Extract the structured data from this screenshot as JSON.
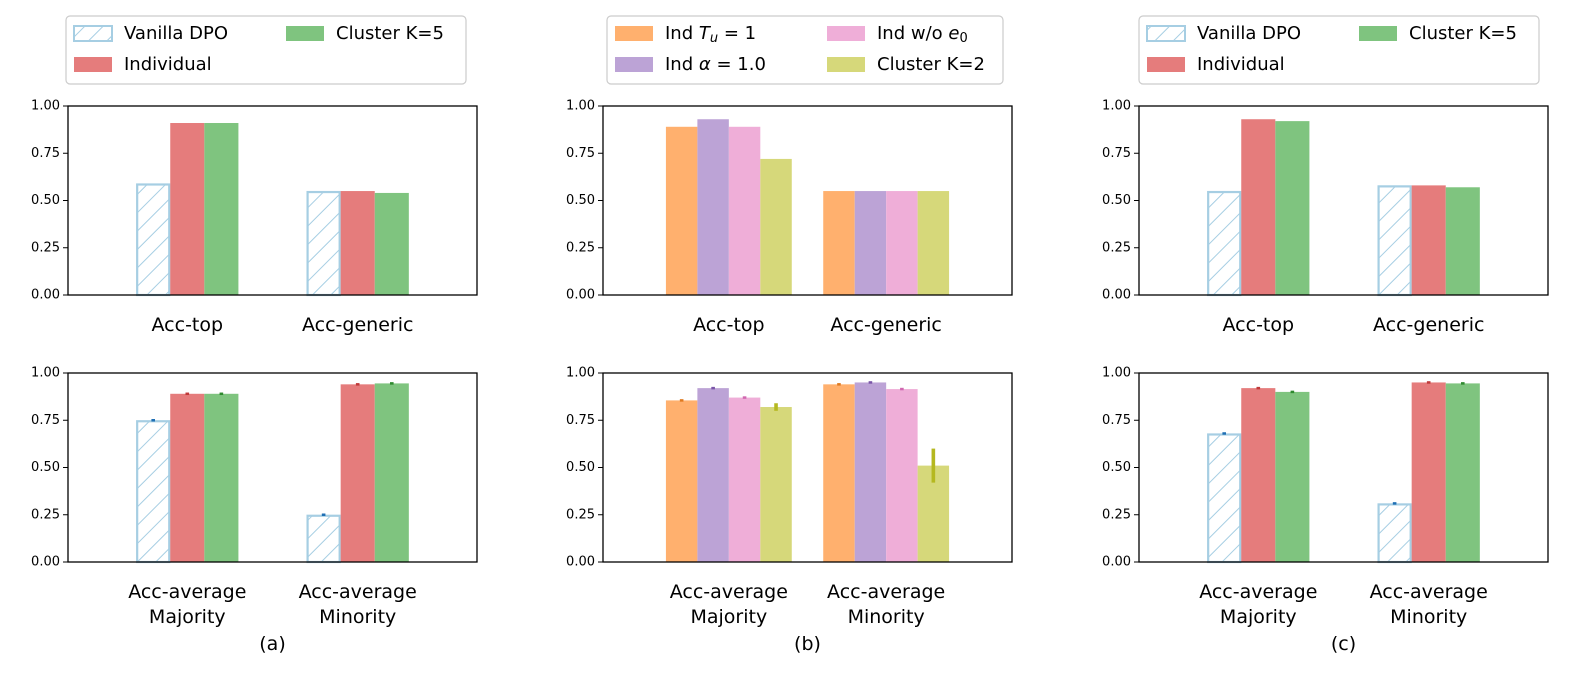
{
  "colors": {
    "vanilla": "#a6cee3",
    "individual": "#e57c7c",
    "cluster5": "#7fc47f",
    "ind_tu": "#ffb06e",
    "ind_alpha": "#bca3d6",
    "ind_wo": "#efaed8",
    "cluster2": "#d6d87a"
  },
  "chart_data": [
    {
      "panel": "a",
      "panel_label": "(a)",
      "type": "bar",
      "ylim": [
        0,
        1
      ],
      "yticks": [
        "0.00",
        "0.25",
        "0.50",
        "0.75",
        "1.00"
      ],
      "legend": [
        {
          "label": "Vanilla DPO",
          "style": "hatch",
          "color": "vanilla"
        },
        {
          "label": "Individual",
          "style": "solid",
          "color": "individual"
        },
        {
          "label": "Cluster K=5",
          "style": "solid",
          "color": "cluster5"
        }
      ],
      "subplots": [
        {
          "categories": [
            "Acc-top",
            "Acc-generic"
          ],
          "series": [
            {
              "name": "Vanilla DPO",
              "values": [
                0.59,
                0.55
              ],
              "errors": [
                0,
                0
              ]
            },
            {
              "name": "Individual",
              "values": [
                0.91,
                0.55
              ],
              "errors": [
                0,
                0
              ]
            },
            {
              "name": "Cluster K=5",
              "values": [
                0.91,
                0.54
              ],
              "errors": [
                0,
                0
              ]
            }
          ]
        },
        {
          "categories": [
            "Acc-average\nMajority",
            "Acc-average\nMinority"
          ],
          "series": [
            {
              "name": "Vanilla DPO",
              "values": [
                0.75,
                0.25
              ],
              "errors": [
                0.005,
                0.005
              ]
            },
            {
              "name": "Individual",
              "values": [
                0.89,
                0.94
              ],
              "errors": [
                0.003,
                0.002
              ]
            },
            {
              "name": "Cluster K=5",
              "values": [
                0.89,
                0.945
              ],
              "errors": [
                0.003,
                0.002
              ]
            }
          ]
        }
      ]
    },
    {
      "panel": "b",
      "panel_label": "(b)",
      "type": "bar",
      "ylim": [
        0,
        1
      ],
      "yticks": [
        "0.00",
        "0.25",
        "0.50",
        "0.75",
        "1.00"
      ],
      "legend": [
        {
          "label": "Ind Tu = 1",
          "style": "solid",
          "color": "ind_tu"
        },
        {
          "label": "Ind α = 1.0",
          "style": "solid",
          "color": "ind_alpha"
        },
        {
          "label": "Ind w/o e0",
          "style": "solid",
          "color": "ind_wo"
        },
        {
          "label": "Cluster K=2",
          "style": "solid",
          "color": "cluster2"
        }
      ],
      "subplots": [
        {
          "categories": [
            "Acc-top",
            "Acc-generic"
          ],
          "series": [
            {
              "name": "Ind Tu = 1",
              "values": [
                0.89,
                0.55
              ],
              "errors": [
                0,
                0
              ]
            },
            {
              "name": "Ind α = 1.0",
              "values": [
                0.93,
                0.55
              ],
              "errors": [
                0,
                0
              ]
            },
            {
              "name": "Ind w/o e0",
              "values": [
                0.89,
                0.55
              ],
              "errors": [
                0,
                0
              ]
            },
            {
              "name": "Cluster K=2",
              "values": [
                0.72,
                0.55
              ],
              "errors": [
                0,
                0
              ]
            }
          ]
        },
        {
          "categories": [
            "Acc-average\nMajority",
            "Acc-average\nMinority"
          ],
          "series": [
            {
              "name": "Ind Tu = 1",
              "values": [
                0.855,
                0.94
              ],
              "errors": [
                0.003,
                0.002
              ]
            },
            {
              "name": "Ind α = 1.0",
              "values": [
                0.92,
                0.95
              ],
              "errors": [
                0.003,
                0.002
              ]
            },
            {
              "name": "Ind w/o e0",
              "values": [
                0.87,
                0.915
              ],
              "errors": [
                0.006,
                0.005
              ]
            },
            {
              "name": "Cluster K=2",
              "values": [
                0.82,
                0.51
              ],
              "errors": [
                0.02,
                0.09
              ]
            }
          ]
        }
      ]
    },
    {
      "panel": "c",
      "panel_label": "(c)",
      "type": "bar",
      "ylim": [
        0,
        1
      ],
      "yticks": [
        "0.00",
        "0.25",
        "0.50",
        "0.75",
        "1.00"
      ],
      "legend": [
        {
          "label": "Vanilla DPO",
          "style": "hatch",
          "color": "vanilla"
        },
        {
          "label": "Individual",
          "style": "solid",
          "color": "individual"
        },
        {
          "label": "Cluster K=5",
          "style": "solid",
          "color": "cluster5"
        }
      ],
      "subplots": [
        {
          "categories": [
            "Acc-top",
            "Acc-generic"
          ],
          "series": [
            {
              "name": "Vanilla DPO",
              "values": [
                0.55,
                0.58
              ],
              "errors": [
                0,
                0
              ]
            },
            {
              "name": "Individual",
              "values": [
                0.93,
                0.58
              ],
              "errors": [
                0,
                0
              ]
            },
            {
              "name": "Cluster K=5",
              "values": [
                0.92,
                0.57
              ],
              "errors": [
                0,
                0
              ]
            }
          ]
        },
        {
          "categories": [
            "Acc-average\nMajority",
            "Acc-average\nMinority"
          ],
          "series": [
            {
              "name": "Vanilla DPO",
              "values": [
                0.68,
                0.31
              ],
              "errors": [
                0.004,
                0.004
              ]
            },
            {
              "name": "Individual",
              "values": [
                0.92,
                0.95
              ],
              "errors": [
                0.003,
                0.002
              ]
            },
            {
              "name": "Cluster K=5",
              "values": [
                0.9,
                0.945
              ],
              "errors": [
                0.003,
                0.003
              ]
            }
          ]
        }
      ]
    }
  ]
}
